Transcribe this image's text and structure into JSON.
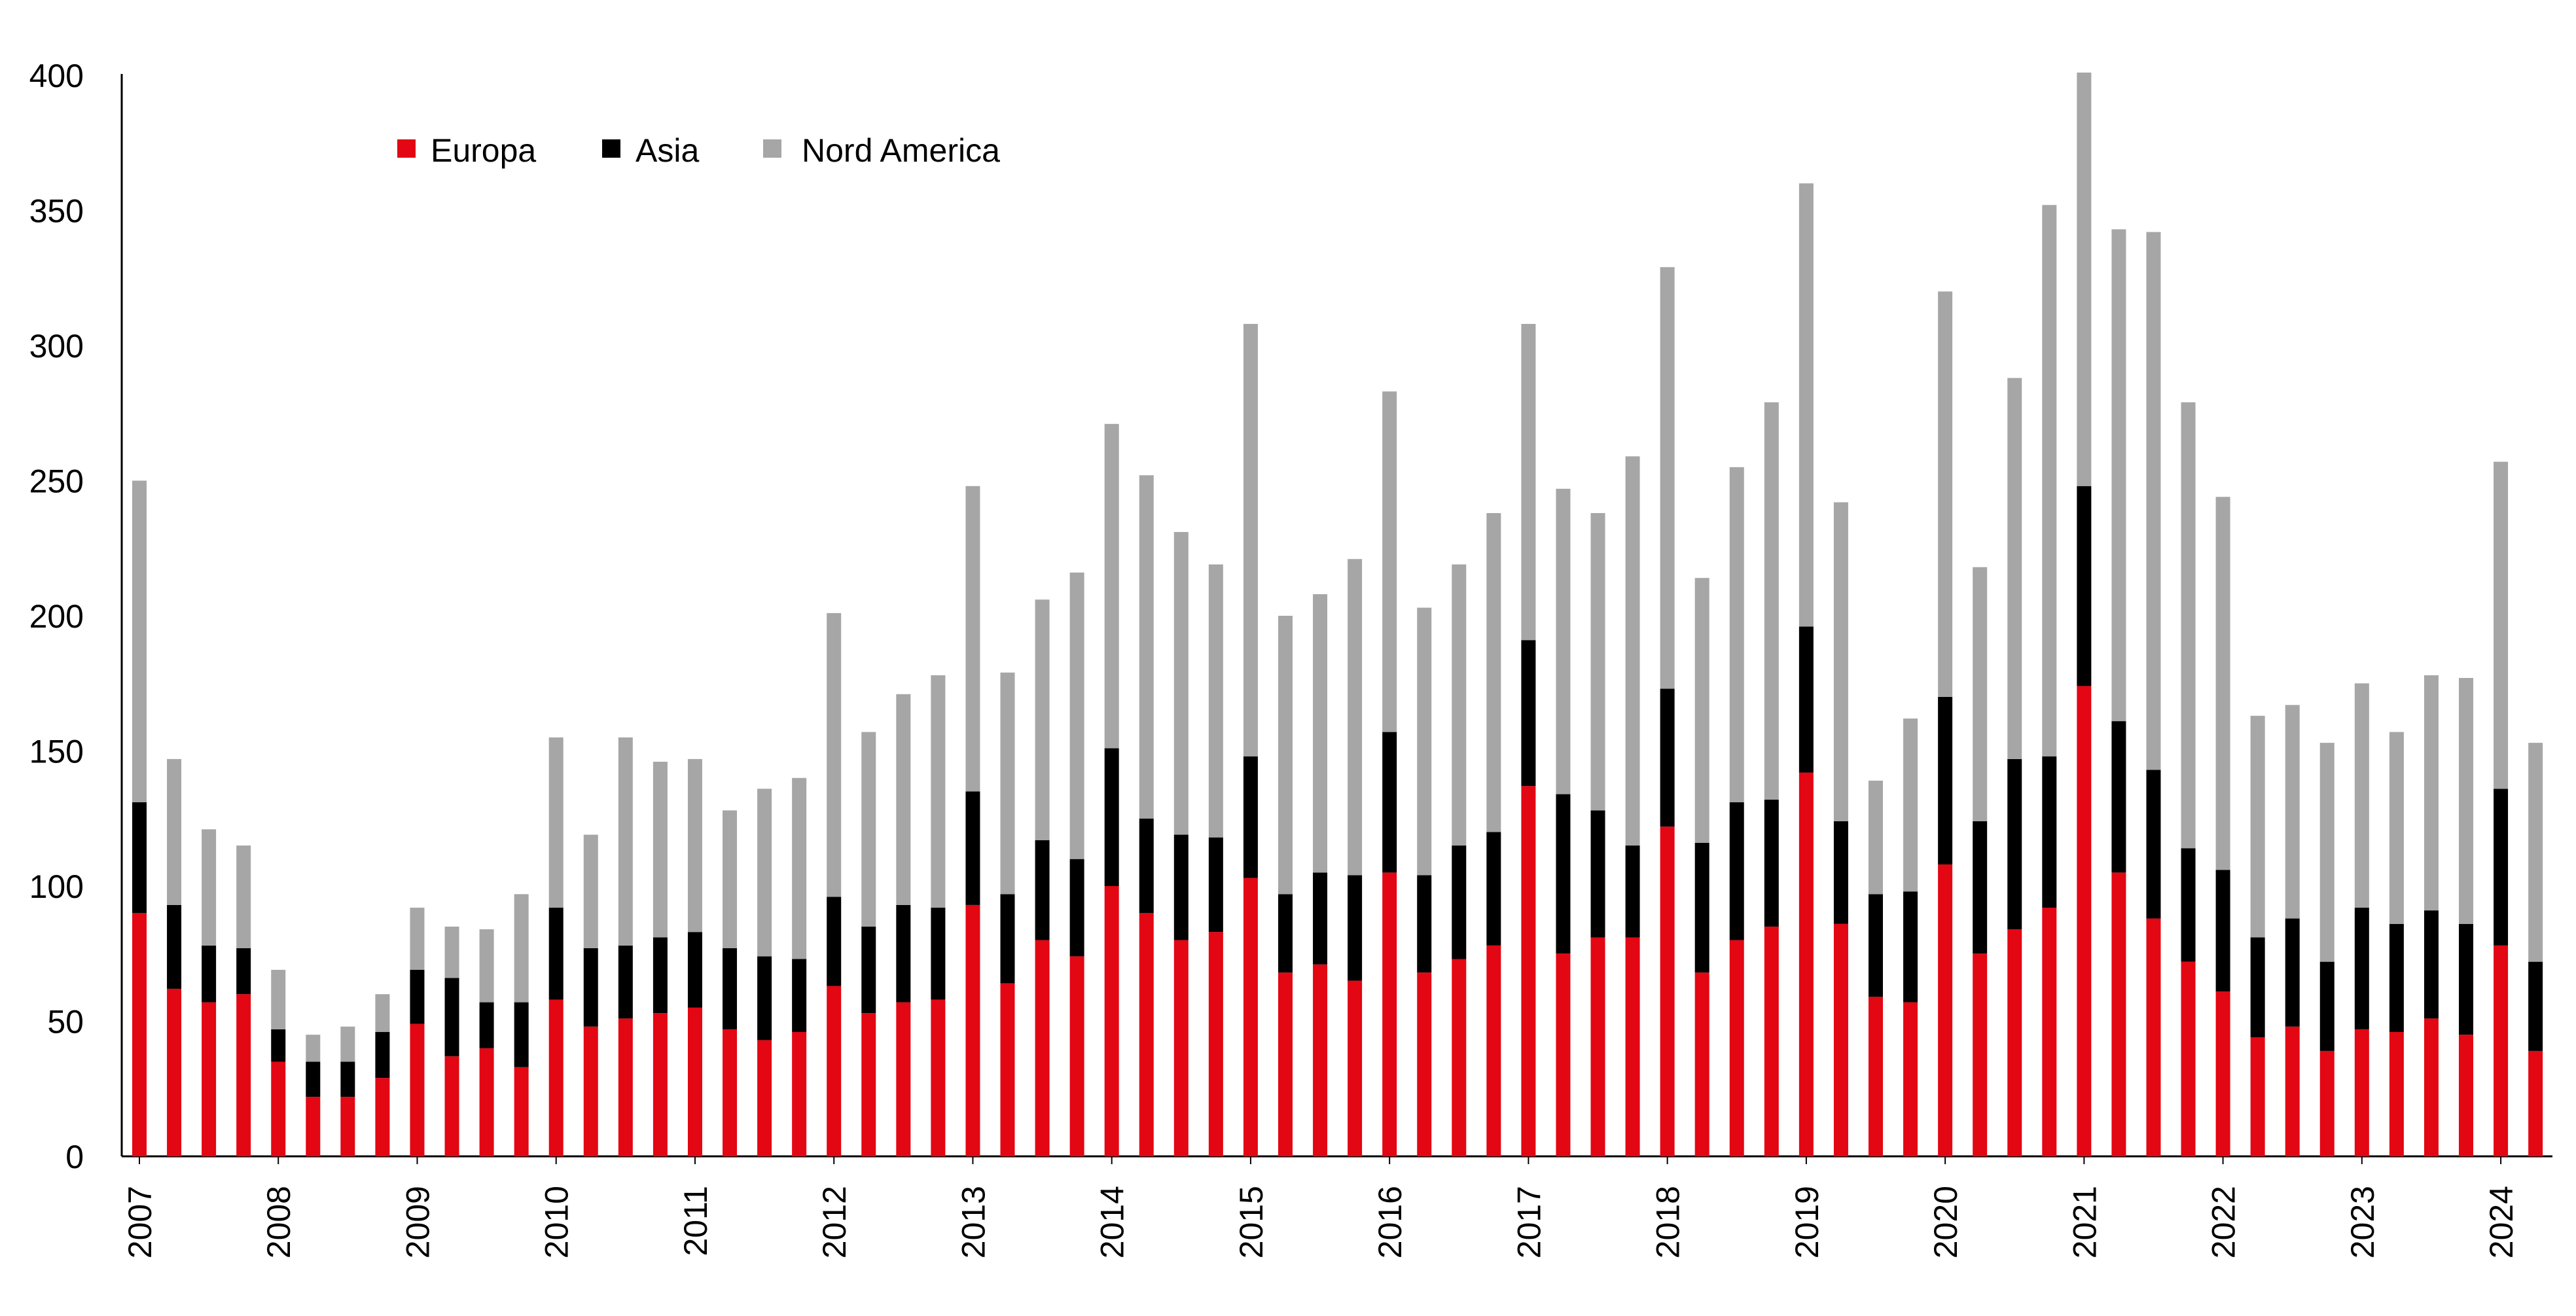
{
  "chart_data": {
    "type": "bar",
    "stacked": true,
    "ylim": [
      0,
      400
    ],
    "yticks": [
      0,
      50,
      100,
      150,
      200,
      250,
      300,
      350,
      400
    ],
    "x_year_labels": [
      "2007",
      "2008",
      "2009",
      "2010",
      "2011",
      "2012",
      "2013",
      "2014",
      "2015",
      "2016",
      "2017",
      "2018",
      "2019",
      "2020",
      "2021",
      "2022",
      "2023",
      "2024"
    ],
    "categories": [
      "2007 Q1",
      "2007 Q2",
      "2007 Q3",
      "2007 Q4",
      "2008 Q1",
      "2008 Q2",
      "2008 Q3",
      "2008 Q4",
      "2009 Q1",
      "2009 Q2",
      "2009 Q3",
      "2009 Q4",
      "2010 Q1",
      "2010 Q2",
      "2010 Q3",
      "2010 Q4",
      "2011 Q1",
      "2011 Q2",
      "2011 Q3",
      "2011 Q4",
      "2012 Q1",
      "2012 Q2",
      "2012 Q3",
      "2012 Q4",
      "2013 Q1",
      "2013 Q2",
      "2013 Q3",
      "2013 Q4",
      "2014 Q1",
      "2014 Q2",
      "2014 Q3",
      "2014 Q4",
      "2015 Q1",
      "2015 Q2",
      "2015 Q3",
      "2015 Q4",
      "2016 Q1",
      "2016 Q2",
      "2016 Q3",
      "2016 Q4",
      "2017 Q1",
      "2017 Q2",
      "2017 Q3",
      "2017 Q4",
      "2018 Q1",
      "2018 Q2",
      "2018 Q3",
      "2018 Q4",
      "2019 Q1",
      "2019 Q2",
      "2019 Q3",
      "2019 Q4",
      "2020 Q1",
      "2020 Q2",
      "2020 Q3",
      "2020 Q4",
      "2021 Q1",
      "2021 Q2",
      "2021 Q3",
      "2021 Q4",
      "2022 Q1",
      "2022 Q2",
      "2022 Q3",
      "2022 Q4",
      "2023 Q1",
      "2023 Q2",
      "2023 Q3",
      "2023 Q4",
      "2024 Q1",
      "2024 Q2"
    ],
    "series": [
      {
        "name": "Europa",
        "color": "#e30613",
        "values": [
          90,
          62,
          57,
          60,
          35,
          22,
          22,
          29,
          49,
          37,
          40,
          33,
          58,
          48,
          51,
          53,
          55,
          47,
          43,
          46,
          63,
          53,
          57,
          58,
          93,
          64,
          80,
          74,
          100,
          90,
          80,
          83,
          103,
          68,
          71,
          65,
          105,
          68,
          73,
          78,
          137,
          75,
          81,
          81,
          122,
          68,
          80,
          85,
          142,
          86,
          59,
          57,
          108,
          75,
          84,
          92,
          174,
          105,
          88,
          72,
          61,
          44,
          48,
          39,
          47,
          46,
          51,
          45,
          78,
          39
        ]
      },
      {
        "name": "Asia",
        "color": "#000000",
        "values": [
          41,
          31,
          21,
          17,
          12,
          13,
          13,
          17,
          20,
          29,
          17,
          24,
          34,
          29,
          27,
          28,
          28,
          30,
          31,
          27,
          33,
          32,
          36,
          34,
          42,
          33,
          37,
          36,
          51,
          35,
          39,
          35,
          45,
          29,
          34,
          39,
          52,
          36,
          42,
          42,
          54,
          59,
          47,
          34,
          51,
          48,
          51,
          47,
          54,
          38,
          38,
          41,
          62,
          49,
          63,
          56,
          74,
          56,
          55,
          42,
          45,
          37,
          40,
          33,
          45,
          40,
          40,
          41,
          58,
          33
        ]
      },
      {
        "name": "Nord America",
        "color": "#a6a6a6",
        "values": [
          119,
          54,
          43,
          38,
          22,
          10,
          13,
          14,
          23,
          19,
          27,
          40,
          63,
          42,
          77,
          65,
          64,
          51,
          62,
          67,
          105,
          72,
          78,
          86,
          113,
          82,
          89,
          106,
          120,
          127,
          112,
          101,
          160,
          103,
          103,
          117,
          126,
          99,
          104,
          118,
          117,
          113,
          110,
          144,
          156,
          98,
          124,
          147,
          164,
          118,
          42,
          64,
          150,
          94,
          141,
          204,
          153,
          182,
          199,
          165,
          138,
          82,
          79,
          81,
          83,
          71,
          87,
          91,
          121,
          81
        ]
      }
    ]
  }
}
